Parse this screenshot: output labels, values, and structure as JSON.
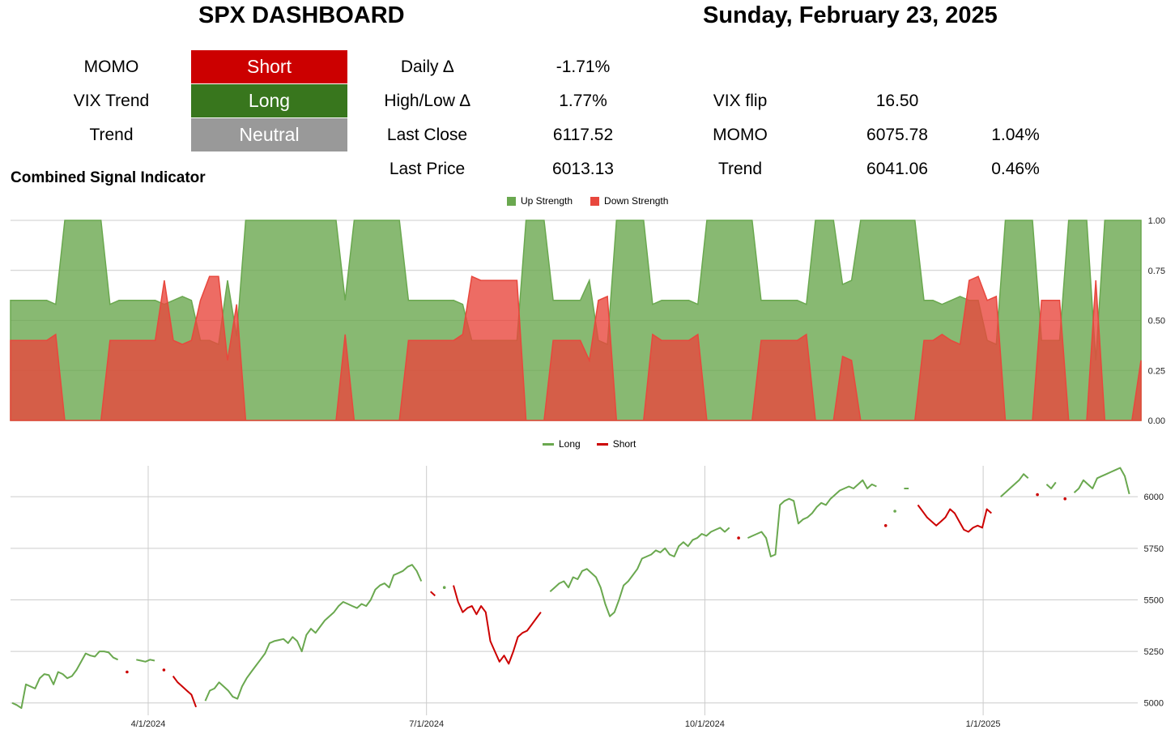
{
  "header": {
    "title": "SPX DASHBOARD",
    "date": "Sunday, February 23, 2025"
  },
  "signals": [
    {
      "label": "MOMO",
      "status": "Short",
      "color": "#cc0000"
    },
    {
      "label": "VIX Trend",
      "status": "Long",
      "color": "#38761d"
    },
    {
      "label": "Trend",
      "status": "Neutral",
      "color": "#999999"
    }
  ],
  "stats": [
    {
      "label": "Daily ∆",
      "value": "-1.71%"
    },
    {
      "label": "High/Low ∆",
      "value": "1.77%"
    },
    {
      "label": "Last Close",
      "value": "6117.52"
    },
    {
      "label": "Last Price",
      "value": "6013.13"
    }
  ],
  "levels": [
    {
      "label": "VIX flip",
      "value": "16.50",
      "pct": ""
    },
    {
      "label": "MOMO",
      "value": "6075.78",
      "pct": "1.04%"
    },
    {
      "label": "Trend",
      "value": "6041.06",
      "pct": "0.46%"
    }
  ],
  "section_title": "Combined Signal Indicator",
  "chart_data": [
    {
      "type": "area",
      "legend": [
        "Up Strength",
        "Down Strength"
      ],
      "colors": {
        "up": "#6aa84f",
        "down": "#e8473d"
      },
      "ylim": [
        0,
        1
      ],
      "yticks": [
        "0.00",
        "0.25",
        "0.50",
        "0.75",
        "1.00"
      ],
      "series": [
        {
          "name": "Up Strength",
          "values": [
            0.6,
            0.6,
            0.6,
            0.6,
            0.6,
            0.58,
            1,
            1,
            1,
            1,
            1,
            0.58,
            0.6,
            0.6,
            0.6,
            0.6,
            0.6,
            0.58,
            0.6,
            0.62,
            0.6,
            0.4,
            0.4,
            0.38,
            0.7,
            0.42,
            1,
            1,
            1,
            1,
            1,
            1,
            1,
            1,
            1,
            1,
            1,
            0.6,
            1,
            1,
            1,
            1,
            1,
            1,
            0.6,
            0.6,
            0.6,
            0.6,
            0.6,
            0.6,
            0.58,
            0.4,
            0.4,
            0.4,
            0.4,
            0.4,
            0.4,
            1,
            1,
            1,
            0.6,
            0.6,
            0.6,
            0.6,
            0.7,
            0.4,
            0.38,
            1,
            1,
            1,
            1,
            0.58,
            0.6,
            0.6,
            0.6,
            0.6,
            0.58,
            1,
            1,
            1,
            1,
            1,
            1,
            0.6,
            0.6,
            0.6,
            0.6,
            0.6,
            0.58,
            1,
            1,
            1,
            0.68,
            0.7,
            1,
            1,
            1,
            1,
            1,
            1,
            1,
            0.6,
            0.6,
            0.58,
            0.6,
            0.62,
            0.6,
            0.6,
            0.4,
            0.38,
            1,
            1,
            1,
            1,
            0.4,
            0.4,
            0.4,
            1,
            1,
            1,
            0.3,
            1,
            1,
            1,
            1,
            1
          ]
        },
        {
          "name": "Down Strength",
          "values": [
            0.4,
            0.4,
            0.4,
            0.4,
            0.4,
            0.43,
            0,
            0,
            0,
            0,
            0,
            0.4,
            0.4,
            0.4,
            0.4,
            0.4,
            0.4,
            0.7,
            0.4,
            0.38,
            0.4,
            0.6,
            0.72,
            0.72,
            0.3,
            0.58,
            0,
            0,
            0,
            0,
            0,
            0,
            0,
            0,
            0,
            0,
            0,
            0.43,
            0,
            0,
            0,
            0,
            0,
            0,
            0.4,
            0.4,
            0.4,
            0.4,
            0.4,
            0.4,
            0.43,
            0.72,
            0.7,
            0.7,
            0.7,
            0.7,
            0.7,
            0,
            0,
            0,
            0.4,
            0.4,
            0.4,
            0.4,
            0.3,
            0.6,
            0.62,
            0,
            0,
            0,
            0,
            0.43,
            0.4,
            0.4,
            0.4,
            0.4,
            0.43,
            0,
            0,
            0,
            0,
            0,
            0,
            0.4,
            0.4,
            0.4,
            0.4,
            0.4,
            0.43,
            0,
            0,
            0,
            0.32,
            0.3,
            0,
            0,
            0,
            0,
            0,
            0,
            0,
            0.4,
            0.4,
            0.43,
            0.4,
            0.38,
            0.7,
            0.72,
            0.6,
            0.62,
            0,
            0,
            0,
            0,
            0.6,
            0.6,
            0.6,
            0,
            0,
            0,
            0.7,
            0,
            0,
            0,
            0,
            0.3
          ]
        }
      ]
    },
    {
      "type": "line",
      "legend": [
        "Long",
        "Short"
      ],
      "colors": {
        "Long": "#6aa84f",
        "Short": "#cc0000"
      },
      "ylim": [
        4940,
        6150
      ],
      "yticks": [
        5000,
        5250,
        5500,
        5750,
        6000
      ],
      "xticks": [
        "4/1/2024",
        "7/1/2024",
        "10/1/2024",
        "1/1/2025"
      ],
      "series": [
        {
          "name": "Long",
          "segments": [
            [
              5000,
              4990,
              4975,
              5090,
              5080,
              5070,
              5120,
              5140,
              5135,
              5090,
              5150,
              5140,
              5120,
              5130,
              5160,
              5200,
              5240,
              5230,
              5225,
              5250,
              5250,
              5245,
              5220,
              5210
            ],
            [
              5210,
              5205,
              5200,
              5210,
              5205
            ],
            [
              5010,
              5060,
              5070,
              5100,
              5080,
              5060,
              5030,
              5020,
              5080,
              5120,
              5150,
              5180,
              5210,
              5240,
              5290,
              5300,
              5305,
              5310,
              5290,
              5320,
              5300,
              5250,
              5330,
              5360,
              5340,
              5370,
              5400,
              5420,
              5440,
              5470,
              5490,
              5480,
              5470,
              5460,
              5480,
              5470,
              5500,
              5550,
              5570,
              5580,
              5560,
              5620,
              5630,
              5640,
              5660,
              5670,
              5640,
              5590
            ],
            [
              5560
            ],
            [
              5540,
              5560,
              5580,
              5590,
              5560,
              5610,
              5600,
              5640,
              5650,
              5630,
              5610,
              5560,
              5480,
              5420,
              5440,
              5500,
              5570,
              5590,
              5620,
              5650,
              5700,
              5710,
              5720,
              5740,
              5730,
              5750,
              5720,
              5710,
              5760,
              5780,
              5760,
              5790,
              5800,
              5820,
              5810,
              5830,
              5840,
              5850,
              5830,
              5850
            ],
            [
              5800,
              5810,
              5820,
              5830,
              5800,
              5710,
              5720,
              5960,
              5980,
              5990,
              5980,
              5870,
              5890,
              5900,
              5920,
              5950,
              5970,
              5960,
              5990,
              6010,
              6030,
              6040,
              6050,
              6040,
              6060,
              6080,
              6040,
              6060,
              6050
            ],
            [
              5930
            ],
            [
              6040,
              6040
            ],
            [
              6000,
              6020,
              6040,
              6060,
              6080,
              6110,
              6090
            ],
            [
              6060,
              6040,
              6070
            ],
            [
              6020,
              6040,
              6080,
              6060,
              6040,
              6090,
              6100,
              6110,
              6120,
              6130,
              6140,
              6100,
              6013
            ]
          ]
        },
        {
          "name": "Short",
          "segments": [
            [
              5150
            ],
            [
              5160
            ],
            [
              5130,
              5100,
              5080,
              5060,
              5040,
              4980
            ],
            [
              5880
            ],
            [
              5540,
              5520
            ],
            [
              5570,
              5490,
              5440,
              5460,
              5470,
              5430,
              5470,
              5440,
              5300,
              5250,
              5200,
              5230,
              5190,
              5250,
              5320,
              5340,
              5350,
              5380,
              5410,
              5440
            ],
            [
              5800
            ],
            [
              5860
            ],
            [
              5960,
              5930,
              5900,
              5880,
              5860,
              5880,
              5900,
              5940,
              5920,
              5880,
              5840,
              5830,
              5850,
              5860,
              5850,
              5940,
              5920
            ],
            [
              6010
            ],
            [
              5990
            ]
          ]
        }
      ]
    }
  ]
}
